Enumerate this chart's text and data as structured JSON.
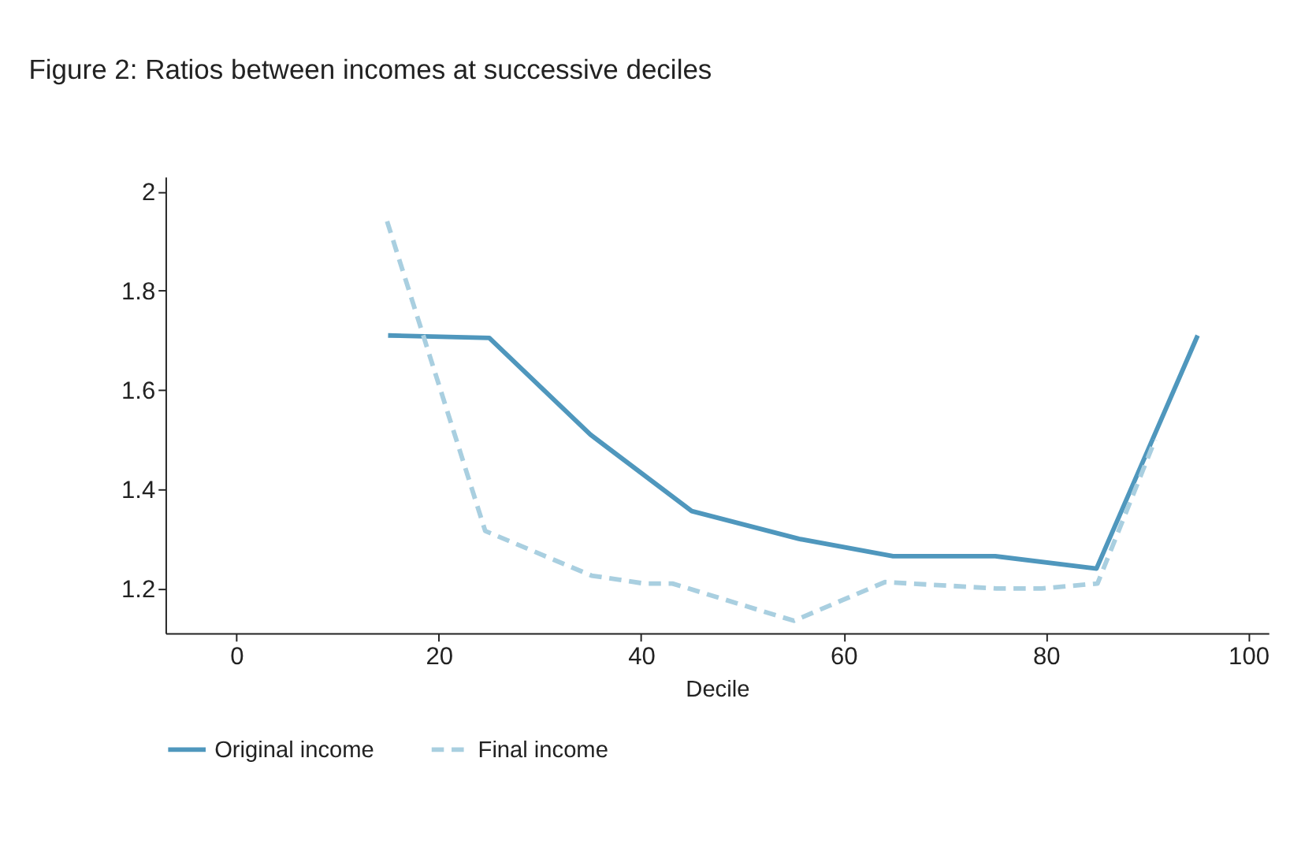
{
  "chart_data": {
    "type": "line",
    "title": "Figure 2: Ratios between incomes at successive deciles",
    "xlabel": "Decile",
    "xlim": [
      -7,
      102
    ],
    "xticks": [
      0,
      20,
      40,
      60,
      80,
      100
    ],
    "ylim": [
      1.11,
      2.03
    ],
    "yticks": [
      1.2,
      1.4,
      1.6,
      1.8,
      2
    ],
    "grid": false,
    "legend": "bottom",
    "marker": "none",
    "series": [
      {
        "name": "Original income",
        "color": "#4f97bd",
        "line_style": "solid",
        "x": [
          15,
          25,
          35,
          45,
          55.6,
          64.9,
          75,
          85,
          95
        ],
        "values": [
          1.71,
          1.705,
          1.51,
          1.356,
          1.3,
          1.265,
          1.265,
          1.24,
          1.71
        ]
      },
      {
        "name": "Final income",
        "color": "#a9cfe0",
        "line_style": "dashed",
        "x": [
          14.9,
          24.6,
          35.1,
          40.3,
          43.1,
          55.1,
          64.1,
          75.1,
          79.6,
          85.1,
          90.8
        ],
        "values": [
          1.94,
          1.316,
          1.226,
          1.21,
          1.21,
          1.135,
          1.213,
          1.2,
          1.2,
          1.21,
          1.5
        ]
      }
    ]
  }
}
